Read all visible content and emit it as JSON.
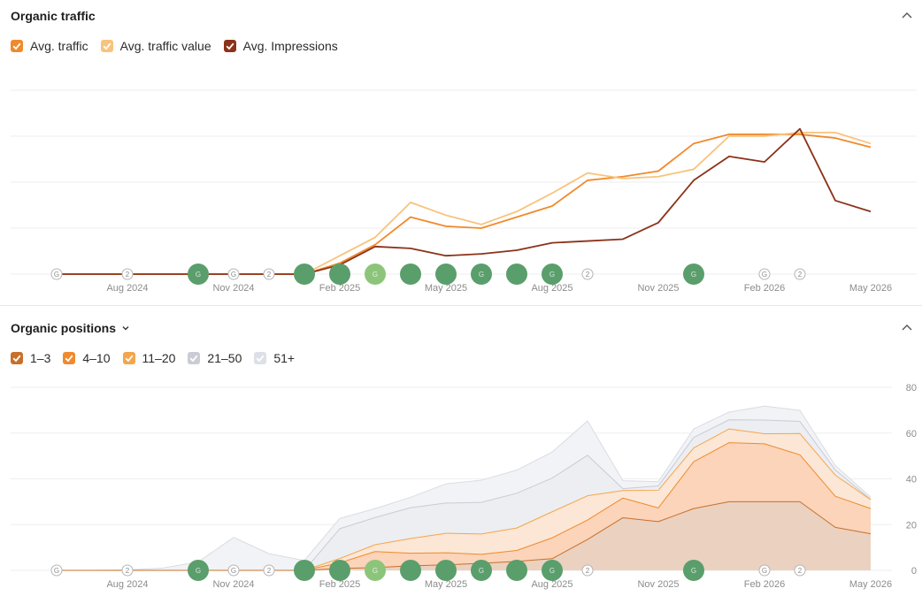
{
  "traffic": {
    "title": "Organic traffic",
    "legend": [
      {
        "label": "Avg. traffic",
        "color": "#f08a2c"
      },
      {
        "label": "Avg. traffic value",
        "color": "#f8c37d"
      },
      {
        "label": "Avg. Impressions",
        "color": "#8b3219"
      }
    ]
  },
  "positions": {
    "title": "Organic positions",
    "legend": [
      {
        "label": "1–3",
        "color": "#c8702a"
      },
      {
        "label": "4–10",
        "color": "#f08a2c"
      },
      {
        "label": "11–20",
        "color": "#f5a54b"
      },
      {
        "label": "21–50",
        "color": "#c9ccd4"
      },
      {
        "label": "51+",
        "color": "#dde0e6"
      }
    ]
  },
  "markers": {
    "small": [
      {
        "month": 0,
        "label": "G"
      },
      {
        "month": 2,
        "label": "2"
      },
      {
        "month": 5,
        "label": "G"
      },
      {
        "month": 6,
        "label": "2"
      },
      {
        "month": 15,
        "label": "2"
      },
      {
        "month": 20,
        "label": "G"
      },
      {
        "month": 21,
        "label": "2"
      }
    ],
    "big": [
      {
        "month": 4,
        "color": "#5a9e6c",
        "label": "G"
      },
      {
        "month": 7,
        "color": "#5a9e6c",
        "label": ""
      },
      {
        "month": 8,
        "color": "#5a9e6c",
        "label": ""
      },
      {
        "month": 9,
        "color": "#8cc57a",
        "label": "G"
      },
      {
        "month": 10,
        "color": "#5a9e6c",
        "label": ""
      },
      {
        "month": 11,
        "color": "#5a9e6c",
        "label": ""
      },
      {
        "month": 12,
        "color": "#5a9e6c",
        "label": "G"
      },
      {
        "month": 13,
        "color": "#5a9e6c",
        "label": ""
      },
      {
        "month": 14,
        "color": "#5a9e6c",
        "label": "G"
      },
      {
        "month": 18,
        "color": "#5a9e6c",
        "label": "G"
      }
    ]
  },
  "chart_data": [
    {
      "type": "line",
      "title": "Organic traffic",
      "x_labels": [
        "Aug 2024",
        "Nov 2024",
        "Feb 2025",
        "May 2025",
        "Aug 2025",
        "Nov 2025",
        "Feb 2026",
        "May 2026"
      ],
      "x_label_months": [
        2,
        5,
        8,
        11,
        14,
        17,
        20,
        23
      ],
      "x": [
        0,
        7,
        8,
        9,
        10,
        11,
        12,
        13,
        14,
        15,
        16,
        17,
        18,
        19,
        20,
        21,
        22,
        23
      ],
      "series": [
        {
          "name": "Avg. traffic",
          "color": "#f08a2c",
          "values": [
            0,
            0,
            0.6,
            1.6,
            3.1,
            2.6,
            2.5,
            3.1,
            3.7,
            5.1,
            5.3,
            5.6,
            7.1,
            7.6,
            7.6,
            7.6,
            7.4,
            6.9
          ]
        },
        {
          "name": "Avg. traffic value",
          "color": "#f8c37d",
          "values": [
            0,
            0,
            1.0,
            2.0,
            3.9,
            3.2,
            2.7,
            3.4,
            4.4,
            5.5,
            5.2,
            5.3,
            5.7,
            7.5,
            7.5,
            7.7,
            7.7,
            7.1
          ]
        },
        {
          "name": "Avg. Impressions",
          "color": "#8b3219",
          "values": [
            0,
            0,
            0.5,
            1.5,
            1.4,
            1.0,
            1.1,
            1.3,
            1.7,
            1.8,
            1.9,
            2.8,
            5.1,
            6.4,
            6.1,
            7.9,
            4.0,
            3.4
          ]
        }
      ],
      "ylim": [
        0,
        10
      ],
      "grid": true
    },
    {
      "type": "area",
      "title": "Organic positions",
      "x_labels": [
        "Aug 2024",
        "Nov 2024",
        "Feb 2025",
        "May 2025",
        "Aug 2025",
        "Nov 2025",
        "Feb 2026",
        "May 2026"
      ],
      "x_label_months": [
        2,
        5,
        8,
        11,
        14,
        17,
        20,
        23
      ],
      "x": [
        0,
        1,
        2,
        3,
        4,
        5,
        6,
        7,
        8,
        9,
        10,
        11,
        12,
        13,
        14,
        15,
        16,
        17,
        18,
        19,
        20,
        21,
        22,
        23
      ],
      "y_ticks": [
        "0",
        "20",
        "40",
        "60",
        "80"
      ],
      "ylim": [
        0,
        80
      ],
      "stacked": true,
      "series": [
        {
          "name": "1–3",
          "color": "#c8702a",
          "values": [
            0,
            0,
            0,
            0,
            0,
            0,
            0,
            0,
            0.8,
            1.2,
            2.0,
            2.4,
            3.1,
            3.9,
            5.1,
            13.5,
            23.0,
            21.3,
            27.0,
            30.0,
            30.0,
            30.0,
            18.8,
            16.0
          ]
        },
        {
          "name": "4–10",
          "color": "#f08a2c",
          "values": [
            0,
            0,
            0,
            0,
            0,
            0,
            0,
            0,
            2.5,
            7.0,
            5.5,
            5.3,
            3.9,
            4.8,
            9.1,
            8.5,
            8.6,
            6.0,
            20.5,
            25.8,
            25.3,
            20.5,
            13.6,
            11.0
          ]
        },
        {
          "name": "11–20",
          "color": "#f5a54b",
          "values": [
            0,
            0,
            0,
            0,
            0,
            0,
            0,
            0,
            1.9,
            3.0,
            6.4,
            8.5,
            8.9,
            9.8,
            11.4,
            10.6,
            3.3,
            7.7,
            6.0,
            6.0,
            4.4,
            9.3,
            9.2,
            3.9
          ]
        },
        {
          "name": "21–50",
          "color": "#c9ccd4",
          "values": [
            0,
            0,
            0,
            0,
            0,
            0,
            0,
            0,
            13.0,
            11.9,
            13.5,
            13.2,
            13.8,
            15.2,
            14.7,
            17.7,
            0.8,
            1.9,
            4.6,
            4.0,
            6.0,
            5.3,
            2.3,
            0.1
          ]
        },
        {
          "name": "51+",
          "color": "#dde0e6",
          "values": [
            0,
            0,
            0.2,
            1.0,
            3.7,
            14.4,
            7.3,
            4.3,
            4.5,
            3.9,
            4.5,
            8.4,
            9.7,
            10.1,
            11.4,
            15.0,
            3.5,
            1.9,
            3.7,
            3.4,
            6.1,
            4.8,
            1.9,
            1.0
          ]
        }
      ],
      "grid": true
    }
  ]
}
